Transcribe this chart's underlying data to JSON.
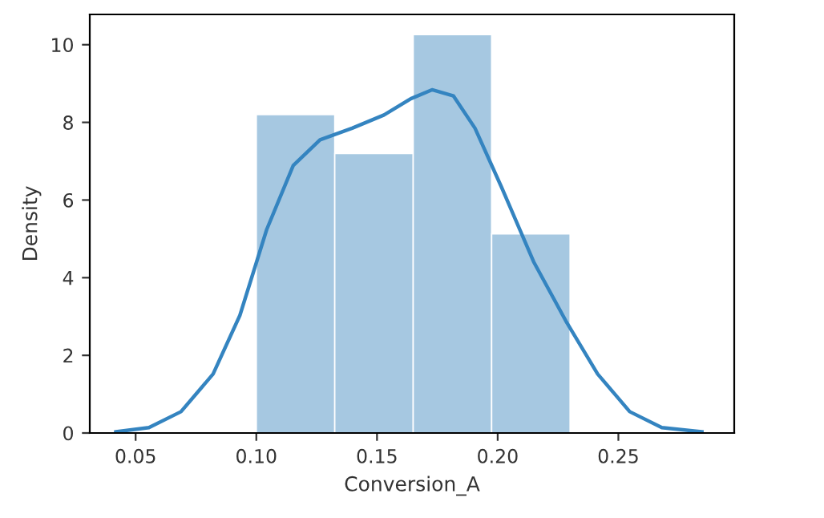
{
  "chart_data": {
    "type": "histogram",
    "xlabel": "Conversion_A",
    "ylabel": "Density",
    "bins": [
      0.1,
      0.1325,
      0.165,
      0.1975,
      0.23
    ],
    "values": [
      8.2,
      7.2,
      10.26,
      5.13
    ],
    "color": "#a6c8e1",
    "series": [
      {
        "type": "line",
        "color": "#3484c0",
        "x": [
          0.0418,
          0.0555,
          0.0688,
          0.0821,
          0.0932,
          0.1043,
          0.1153,
          0.1264,
          0.1397,
          0.1529,
          0.164,
          0.1728,
          0.1817,
          0.1906,
          0.2016,
          0.2149,
          0.2282,
          0.2414,
          0.2547,
          0.268,
          0.2846
        ],
        "values": [
          0.03,
          0.14,
          0.55,
          1.52,
          3.03,
          5.24,
          6.89,
          7.55,
          7.85,
          8.19,
          8.61,
          8.84,
          8.68,
          7.85,
          6.33,
          4.41,
          2.89,
          1.52,
          0.55,
          0.14,
          0.03
        ]
      }
    ],
    "xlim": [
      0.031,
      0.298
    ],
    "xticks": [
      {
        "value": 0.05,
        "label": "0.05"
      },
      {
        "value": 0.1,
        "label": "0.10"
      },
      {
        "value": 0.15,
        "label": "0.15"
      },
      {
        "value": 0.2,
        "label": "0.20"
      },
      {
        "value": 0.25,
        "label": "0.25"
      }
    ],
    "ylim": [
      0,
      10.78
    ],
    "yticks": [
      0,
      2,
      4,
      6,
      8,
      10
    ],
    "grid": false,
    "legend": false
  }
}
